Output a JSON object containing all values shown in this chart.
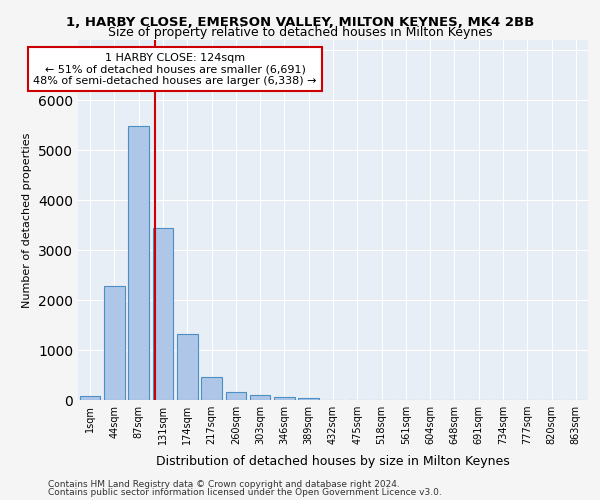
{
  "title_line1": "1, HARBY CLOSE, EMERSON VALLEY, MILTON KEYNES, MK4 2BB",
  "title_line2": "Size of property relative to detached houses in Milton Keynes",
  "xlabel": "Distribution of detached houses by size in Milton Keynes",
  "ylabel": "Number of detached properties",
  "footer_line1": "Contains HM Land Registry data © Crown copyright and database right 2024.",
  "footer_line2": "Contains public sector information licensed under the Open Government Licence v3.0.",
  "annotation_title": "1 HARBY CLOSE: 124sqm",
  "annotation_line1": "← 51% of detached houses are smaller (6,691)",
  "annotation_line2": "48% of semi-detached houses are larger (6,338) →",
  "bin_labels": [
    "1sqm",
    "44sqm",
    "87sqm",
    "131sqm",
    "174sqm",
    "217sqm",
    "260sqm",
    "303sqm",
    "346sqm",
    "389sqm",
    "432sqm",
    "475sqm",
    "518sqm",
    "561sqm",
    "604sqm",
    "648sqm",
    "691sqm",
    "734sqm",
    "777sqm",
    "820sqm",
    "863sqm"
  ],
  "bar_values": [
    75,
    2280,
    5480,
    3450,
    1320,
    470,
    165,
    95,
    55,
    35,
    0,
    0,
    0,
    0,
    0,
    0,
    0,
    0,
    0,
    0,
    0
  ],
  "bar_color": "#aec6e8",
  "bar_edge_color": "#4a90c4",
  "vline_x": 2.65,
  "vline_color": "#cc0000",
  "ylim": [
    0,
    7200
  ],
  "background_color": "#e8eef5",
  "grid_color": "#ffffff",
  "fig_facecolor": "#f5f5f5"
}
